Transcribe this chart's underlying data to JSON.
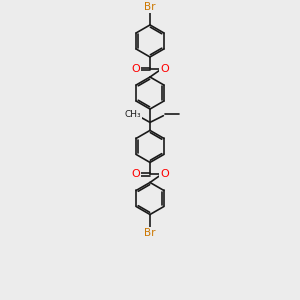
{
  "bg_color": "#ececec",
  "bond_color": "#1a1a1a",
  "oxygen_color": "#ff0000",
  "bromine_color": "#cc7700",
  "lw": 1.2,
  "figsize": [
    3.0,
    3.0
  ],
  "dpi": 100,
  "xlim": [
    -1.5,
    1.5
  ],
  "ylim": [
    -5.5,
    5.5
  ]
}
